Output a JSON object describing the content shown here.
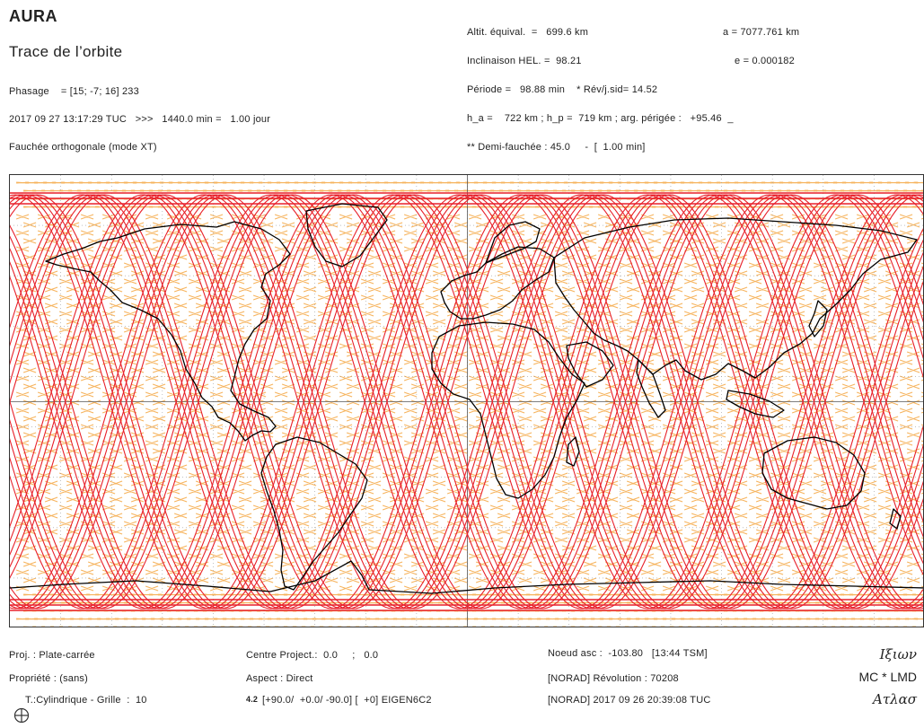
{
  "header": {
    "satellite": "AURA",
    "title": "Trace de l’orbite",
    "phasage": "Phasage    = [15; -7; 16] 233",
    "datetime": "2017 09 27 13:17:29 TUC   >>>   1440.0 min =   1.00 jour",
    "fauchee": "Fauchée orthogonale (mode XT)"
  },
  "orbit": {
    "altitude": "Altit. équival.  =   699.6 km",
    "a": "a = 7077.761 km",
    "inclinaison": "Inclinaison HEL. =  98.21",
    "e": "e = 0.000182",
    "periode": "Période =   98.88 min    * Rév/j.sid= 14.52",
    "h_line": "h_a =    722 km ; h_p =  719 km ; arg. périgée :   +95.46  _",
    "demi": "** Demi-fauchée : 45.0     -  [  1.00 min]"
  },
  "footer": {
    "proj": "Proj. : Plate-carrée",
    "propriete": "Propriété : (sans)",
    "type": "T.:Cylindrique - Grille  :  10",
    "centre": "Centre Project.:  0.0     ;   0.0",
    "aspect": "Aspect : Direct",
    "eigen": "[+90.0/  +0.0/ -90.0] [  +0] EIGEN6C2",
    "eigen_tag": "4.2",
    "noeud": "Noeud asc :  -103.80   [13:44 TSM]",
    "revolution": "[NORAD] Révolution : 70208",
    "norad_date": "[NORAD] 2017 09 26 20:39:08 TUC",
    "brand1": "Ιξιων",
    "brand2": "MC * LMD",
    "brand3": "Ατλασ"
  },
  "map_colors": {
    "ground_track": "#e8202a",
    "swath": "#f5a640",
    "coastline": "#000000",
    "grid": "#9a9a9a"
  },
  "icons": {
    "globe": "globe-crosshair-icon"
  }
}
